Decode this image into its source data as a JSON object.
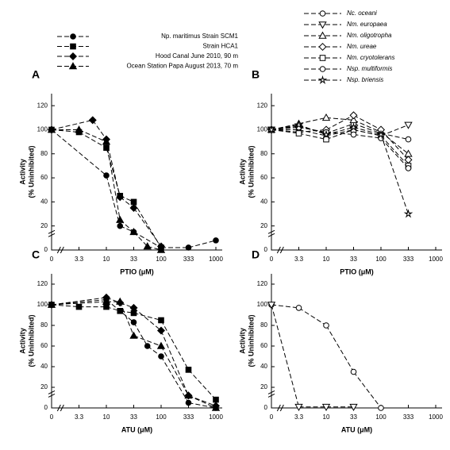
{
  "chart_data": [
    {
      "type": "line",
      "panel_label": "A",
      "xlabel": "PTIO (μM)",
      "ylabel": [
        "Activity",
        "(% Uninhibited)"
      ],
      "categories": [
        "0",
        null,
        "3.3",
        null,
        "10",
        null,
        "33",
        null,
        "100",
        null,
        "333",
        null,
        "1000"
      ],
      "ylim": [
        0,
        130
      ],
      "yticks": [
        0,
        20,
        40,
        60,
        80,
        100,
        120
      ],
      "series": [
        {
          "name": "Np. maritimus Strain SCM1",
          "color": "#000000",
          "marker": "circle",
          "filled": true,
          "values": [
            100,
            null,
            null,
            null,
            62,
            20,
            15,
            null,
            2,
            null,
            2,
            null,
            8
          ]
        },
        {
          "name": "Strain HCA1",
          "color": "#000000",
          "marker": "square",
          "filled": true,
          "values": [
            100,
            null,
            98,
            null,
            85,
            45,
            40,
            null,
            2,
            null,
            null,
            null,
            null
          ]
        },
        {
          "name": "Hood Canal June 2010, 90 m",
          "color": "#000000",
          "marker": "diamond",
          "filled": true,
          "values": [
            100,
            null,
            null,
            108,
            92,
            44,
            35,
            null,
            3,
            null,
            null,
            null,
            null
          ]
        },
        {
          "name": "Ocean Station Papa August 2013, 70 m",
          "color": "#000000",
          "marker": "triangle",
          "filled": true,
          "values": [
            100,
            null,
            100,
            null,
            90,
            25,
            15,
            3,
            0,
            null,
            null,
            null,
            null
          ]
        }
      ]
    },
    {
      "type": "line",
      "panel_label": "B",
      "xlabel": "PTIO (μM)",
      "ylabel": [
        "Activity",
        "(% Uninhibited)"
      ],
      "categories": [
        "0",
        null,
        "3.3",
        null,
        "10",
        null,
        "33",
        null,
        "100",
        null,
        "333",
        null,
        "1000"
      ],
      "ylim": [
        0,
        130
      ],
      "yticks": [
        0,
        20,
        40,
        60,
        80,
        100,
        120
      ],
      "series": [
        {
          "name": "Nc. oceani",
          "color": "#000000",
          "marker": "circle",
          "filled": false,
          "values": [
            100,
            null,
            103,
            null,
            97,
            null,
            105,
            null,
            97,
            null,
            92,
            null,
            null
          ]
        },
        {
          "name": "Nm. europaea",
          "color": "#000000",
          "marker": "triangle-down",
          "filled": false,
          "values": [
            100,
            null,
            100,
            null,
            95,
            null,
            100,
            null,
            95,
            null,
            104,
            null,
            null
          ]
        },
        {
          "name": "Nm. oligotropha",
          "color": "#000000",
          "marker": "triangle",
          "filled": false,
          "values": [
            100,
            null,
            105,
            null,
            110,
            null,
            108,
            null,
            98,
            null,
            80,
            null,
            null
          ]
        },
        {
          "name": "Nm. ureae",
          "color": "#000000",
          "marker": "diamond",
          "filled": false,
          "values": [
            100,
            null,
            98,
            null,
            100,
            null,
            112,
            null,
            100,
            null,
            75,
            null,
            null
          ]
        },
        {
          "name": "Nm. cryotolerans",
          "color": "#000000",
          "marker": "square",
          "filled": false,
          "values": [
            100,
            null,
            97,
            null,
            92,
            null,
            100,
            null,
            95,
            null,
            70,
            null,
            null
          ]
        },
        {
          "name": "Nsp. multiformis",
          "color": "#000000",
          "marker": "circle",
          "filled": false,
          "values": [
            100,
            null,
            102,
            null,
            98,
            null,
            96,
            null,
            93,
            null,
            68,
            null,
            null
          ]
        },
        {
          "name": "Nsp. briensis",
          "color": "#000000",
          "marker": "star",
          "filled": false,
          "values": [
            100,
            null,
            104,
            null,
            96,
            null,
            102,
            null,
            96,
            null,
            30,
            null,
            null
          ]
        }
      ]
    },
    {
      "type": "line",
      "panel_label": "C",
      "xlabel": "ATU (μM)",
      "ylabel": [
        "Activity",
        "(% Uninhibited)"
      ],
      "categories": [
        "0",
        null,
        "3.3",
        null,
        "10",
        null,
        "33",
        null,
        "100",
        null,
        "333",
        null,
        "1000"
      ],
      "ylim": [
        0,
        130
      ],
      "yticks": [
        0,
        20,
        40,
        60,
        80,
        100,
        120
      ],
      "series": [
        {
          "color": "#000000",
          "marker": "circle",
          "filled": true,
          "values": [
            100,
            null,
            null,
            null,
            105,
            null,
            83,
            60,
            50,
            null,
            5,
            null,
            0
          ]
        },
        {
          "color": "#000000",
          "marker": "square",
          "filled": true,
          "values": [
            100,
            null,
            98,
            null,
            98,
            94,
            92,
            null,
            85,
            null,
            37,
            null,
            8
          ]
        },
        {
          "color": "#000000",
          "marker": "diamond",
          "filled": true,
          "values": [
            100,
            null,
            null,
            null,
            107,
            102,
            97,
            null,
            75,
            null,
            12,
            null,
            2
          ]
        },
        {
          "color": "#000000",
          "marker": "triangle",
          "filled": true,
          "values": [
            100,
            null,
            null,
            null,
            103,
            103,
            70,
            null,
            60,
            null,
            12,
            null,
            0
          ]
        }
      ]
    },
    {
      "type": "line",
      "panel_label": "D",
      "xlabel": "ATU (μM)",
      "ylabel": [
        "Activity",
        "(% Uninhibited)"
      ],
      "categories": [
        "0",
        null,
        "3.3",
        null,
        "10",
        null,
        "33",
        null,
        "100",
        null,
        "333",
        null,
        "1000"
      ],
      "ylim": [
        0,
        130
      ],
      "yticks": [
        0,
        20,
        40,
        60,
        80,
        100,
        120
      ],
      "series": [
        {
          "color": "#000000",
          "marker": "circle",
          "filled": false,
          "values": [
            100,
            null,
            97,
            null,
            80,
            null,
            35,
            null,
            0,
            null,
            null,
            null,
            null
          ]
        },
        {
          "color": "#000000",
          "marker": "triangle-down",
          "filled": false,
          "values": [
            100,
            null,
            1,
            null,
            1,
            null,
            1,
            null,
            null,
            null,
            null,
            null,
            null
          ]
        }
      ]
    }
  ]
}
